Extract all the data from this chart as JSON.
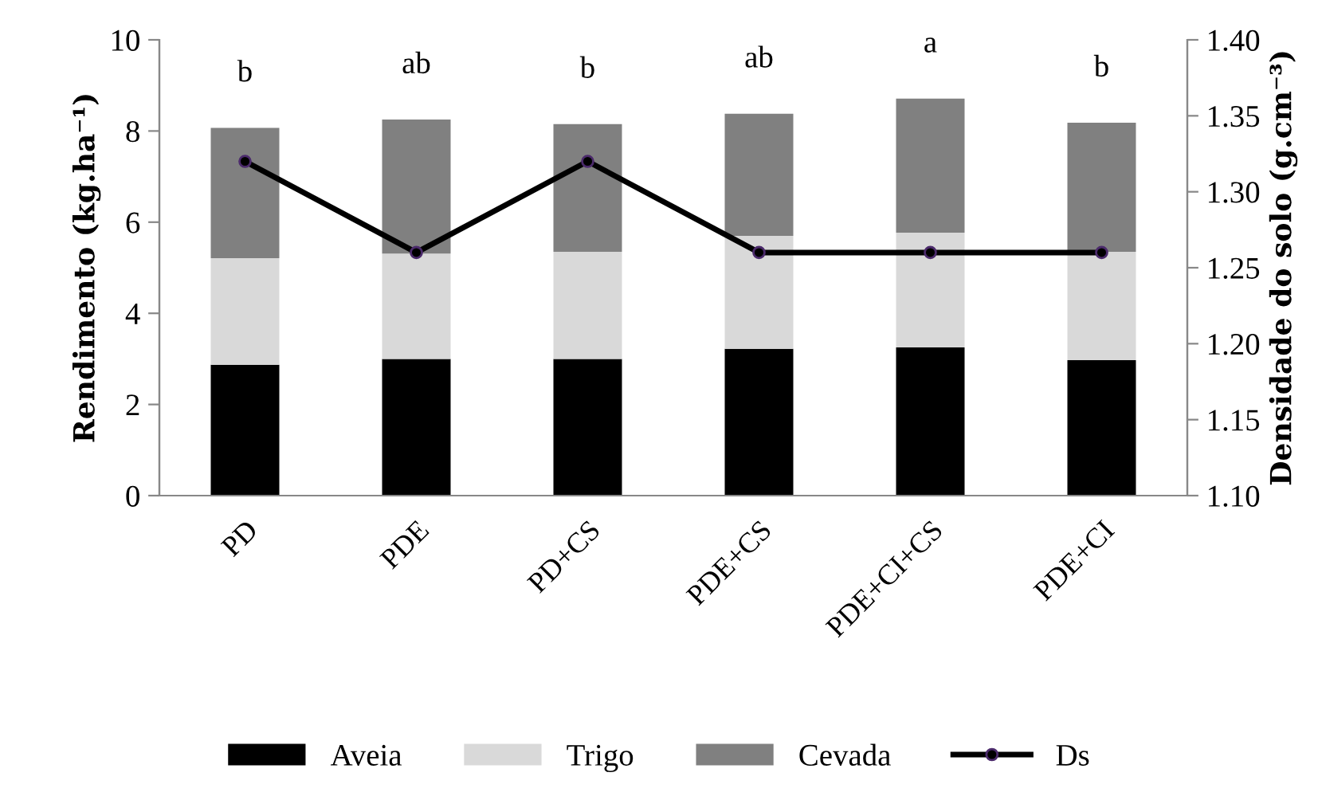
{
  "chart_data": {
    "type": "bar",
    "stacked": true,
    "categories": [
      "PD",
      "PDE",
      "PD+CS",
      "PDE+CS",
      "PDE+CI+CS",
      "PDE+CI"
    ],
    "ylabel": "Rendimento (kg.ha⁻¹)",
    "y2label": "Densidade do solo (g.cm⁻³)",
    "ylim": [
      0,
      10
    ],
    "yticks": [
      0,
      2,
      4,
      6,
      8,
      10
    ],
    "y2lim": [
      1.1,
      1.4
    ],
    "y2ticks": [
      {
        "value": 1.1,
        "label": "1.10"
      },
      {
        "value": 1.15,
        "label": "1.15"
      },
      {
        "value": 1.2,
        "label": "1.20"
      },
      {
        "value": 1.25,
        "label": "1.25"
      },
      {
        "value": 1.3,
        "label": "1.30"
      },
      {
        "value": 1.35,
        "label": "1.35"
      },
      {
        "value": 1.4,
        "label": "1.40"
      }
    ],
    "series": [
      {
        "name": "Aveia",
        "color": "#000000",
        "values": [
          2.87,
          3.0,
          3.0,
          3.22,
          3.25,
          2.97
        ]
      },
      {
        "name": "Trigo",
        "color": "#d9d9d9",
        "values": [
          2.34,
          2.31,
          2.35,
          2.48,
          2.52,
          2.38
        ]
      },
      {
        "name": "Cevada",
        "color": "#808080",
        "values": [
          2.86,
          2.94,
          2.8,
          2.68,
          2.94,
          2.83
        ]
      },
      {
        "name": "Ds",
        "type": "line",
        "axis": "y2",
        "color": "#000000",
        "marker": "circle",
        "values": [
          1.32,
          1.26,
          1.32,
          1.26,
          1.26,
          1.26
        ]
      }
    ],
    "annotations": [
      "b",
      "ab",
      "b",
      "ab",
      "a",
      "b"
    ],
    "legend": "bottom",
    "grid": false
  }
}
